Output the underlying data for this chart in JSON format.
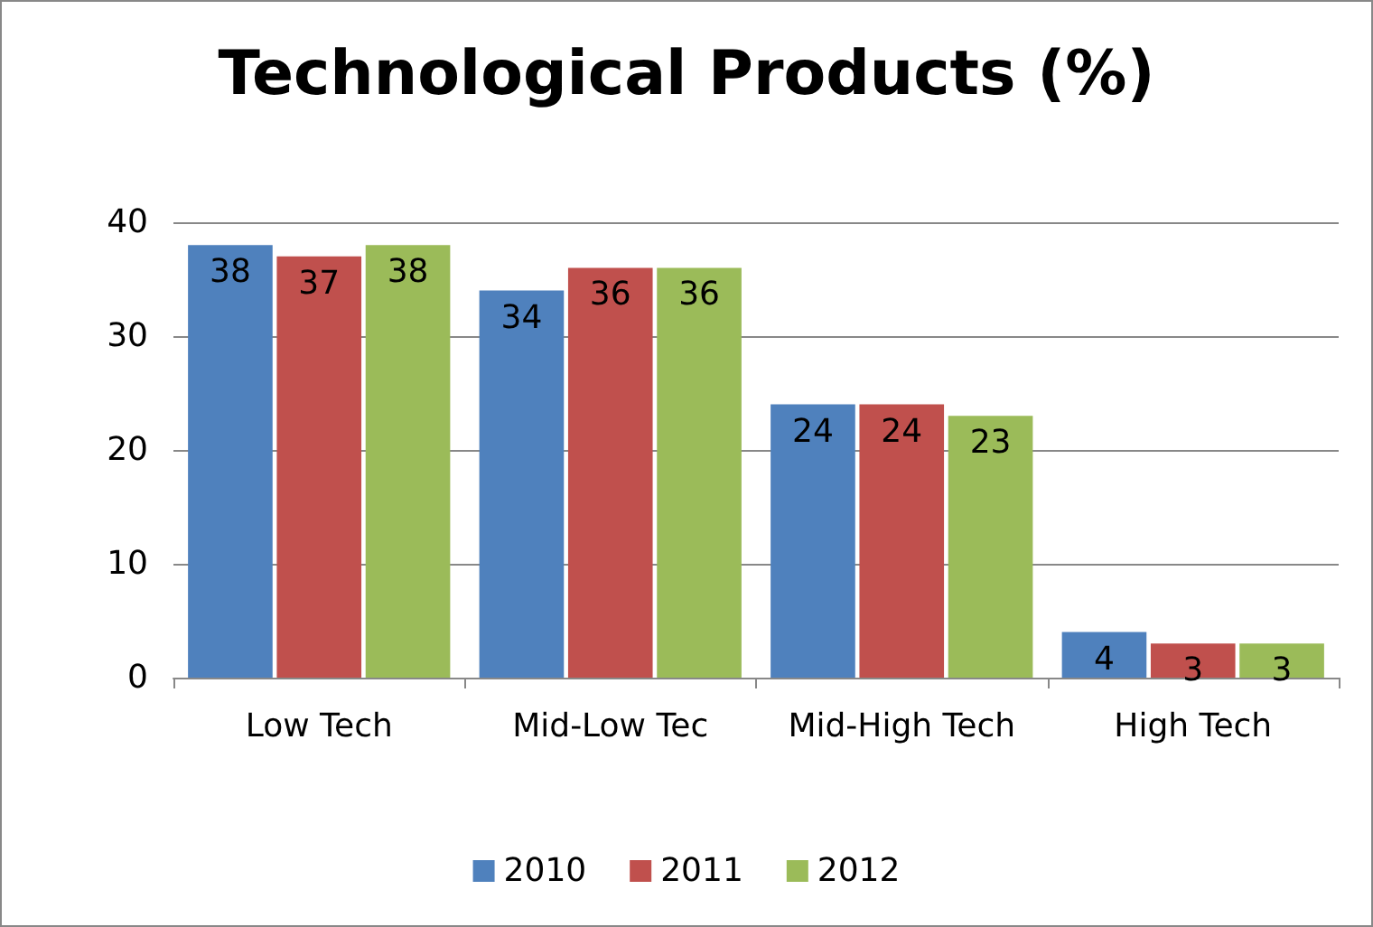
{
  "chart_data": {
    "type": "bar",
    "title": "Technological Products (%)",
    "categories": [
      "Low Tech",
      "Mid-Low Tec",
      "Mid-High Tech",
      "High Tech"
    ],
    "series": [
      {
        "name": "2010",
        "color": "#4f81bd",
        "values": [
          38,
          34,
          24,
          4
        ]
      },
      {
        "name": "2011",
        "color": "#c0504d",
        "values": [
          37,
          36,
          24,
          3
        ]
      },
      {
        "name": "2012",
        "color": "#9bbb59",
        "values": [
          38,
          36,
          23,
          3
        ]
      }
    ],
    "ylim": [
      0,
      40
    ],
    "yticks": [
      0,
      10,
      20,
      30,
      40
    ],
    "grid": "y",
    "legend": "bottom",
    "data_labels": true
  }
}
